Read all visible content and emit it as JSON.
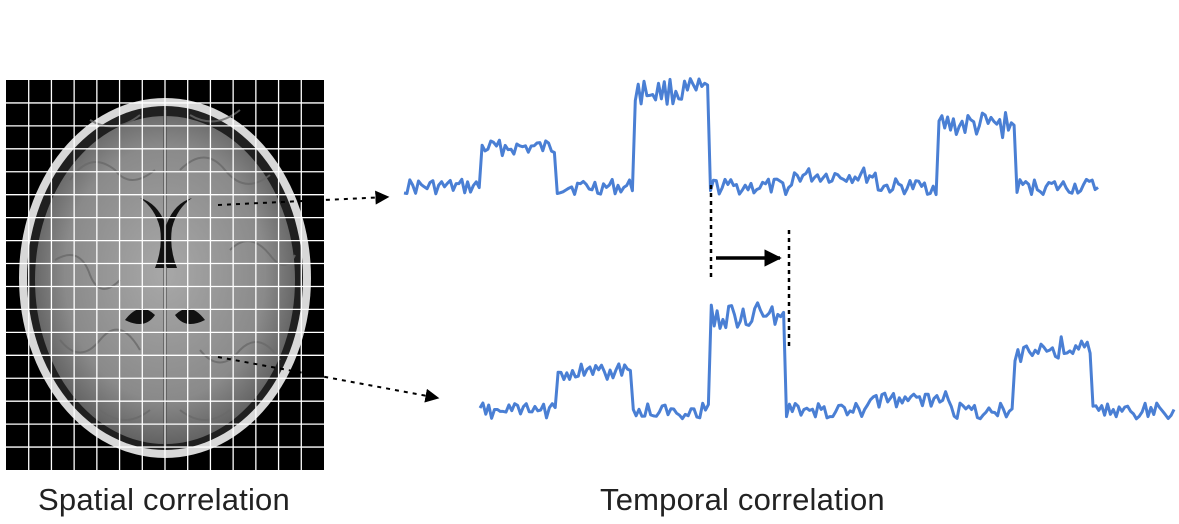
{
  "figure": {
    "left_caption": "Spatial correlation",
    "right_caption": "Temporal correlation"
  },
  "colors": {
    "signal": "#4a7fd4",
    "grid": "#ffffff",
    "scan_background": "#000000",
    "arrow": "#000000",
    "caption": "#222222"
  },
  "panels": {
    "brain_scan": {
      "grid_columns": 14,
      "grid_rows": 17
    },
    "signals": [
      {
        "name": "upper-voxel-signal",
        "levels": [
          {
            "from": 0.0,
            "to": 0.11,
            "level": 0.1
          },
          {
            "from": 0.11,
            "to": 0.22,
            "level": 0.45
          },
          {
            "from": 0.22,
            "to": 0.33,
            "level": 0.1
          },
          {
            "from": 0.33,
            "to": 0.44,
            "level": 0.95
          },
          {
            "from": 0.44,
            "to": 0.56,
            "level": 0.1
          },
          {
            "from": 0.56,
            "to": 0.68,
            "level": 0.2
          },
          {
            "from": 0.68,
            "to": 0.77,
            "level": 0.1
          },
          {
            "from": 0.77,
            "to": 0.88,
            "level": 0.65
          },
          {
            "from": 0.88,
            "to": 1.0,
            "level": 0.1
          }
        ]
      },
      {
        "name": "lower-voxel-signal",
        "levels": [
          {
            "from": 0.0,
            "to": 0.11,
            "level": 0.1
          },
          {
            "from": 0.11,
            "to": 0.22,
            "level": 0.45
          },
          {
            "from": 0.22,
            "to": 0.33,
            "level": 0.1
          },
          {
            "from": 0.33,
            "to": 0.44,
            "level": 0.95
          },
          {
            "from": 0.44,
            "to": 0.56,
            "level": 0.1
          },
          {
            "from": 0.56,
            "to": 0.68,
            "level": 0.2
          },
          {
            "from": 0.68,
            "to": 0.77,
            "level": 0.1
          },
          {
            "from": 0.77,
            "to": 0.88,
            "level": 0.65
          },
          {
            "from": 0.88,
            "to": 1.0,
            "level": 0.1
          }
        ]
      }
    ]
  }
}
